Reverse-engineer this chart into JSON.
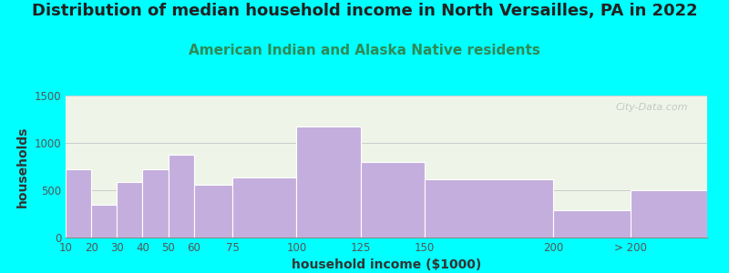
{
  "title": "Distribution of median household income in North Versailles, PA in 2022",
  "subtitle": "American Indian and Alaska Native residents",
  "xlabel": "household income ($1000)",
  "ylabel": "households",
  "background_outer": "#00FFFF",
  "bar_color": "#C4AEDD",
  "bar_edgecolor": "#FFFFFF",
  "values": [
    725,
    350,
    590,
    725,
    875,
    560,
    635,
    1175,
    800,
    615,
    285,
    500
  ],
  "bin_edges": [
    10,
    20,
    30,
    40,
    50,
    60,
    75,
    100,
    125,
    150,
    200,
    230,
    260
  ],
  "tick_positions": [
    10,
    20,
    30,
    40,
    50,
    60,
    75,
    100,
    125,
    150,
    200,
    230
  ],
  "tick_labels": [
    "10",
    "20",
    "30",
    "40",
    "50",
    "60",
    "75",
    "100",
    "125",
    "150",
    "200",
    "> 200"
  ],
  "ylim": [
    0,
    1500
  ],
  "yticks": [
    0,
    500,
    1000,
    1500
  ],
  "xlim": [
    10,
    260
  ],
  "title_fontsize": 13,
  "subtitle_fontsize": 11,
  "axis_label_fontsize": 10,
  "tick_fontsize": 8.5,
  "title_color": "#222222",
  "subtitle_color": "#2E8B57",
  "watermark": "City-Data.com",
  "plot_bg_color": "#EEF5E8"
}
